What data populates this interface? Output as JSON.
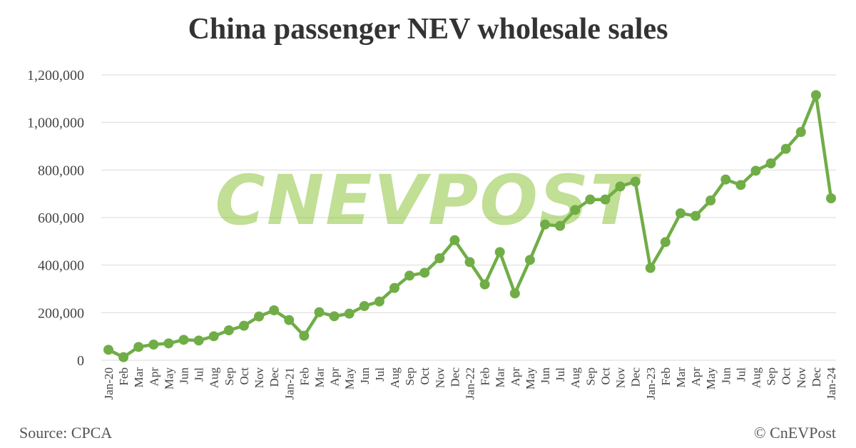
{
  "chart_data": {
    "type": "line",
    "title": "China passenger NEV wholesale sales",
    "source": "Source: CPCA",
    "copyright": "© CnEVPost",
    "watermark": "CNEVPOST",
    "ylim": [
      0,
      1200000
    ],
    "yticks": [
      "0",
      "200,000",
      "400,000",
      "600,000",
      "800,000",
      "1,000,000",
      "1,200,000"
    ],
    "ytick_values": [
      0,
      200000,
      400000,
      600000,
      800000,
      1000000,
      1200000
    ],
    "grid": true,
    "line_color": "#70ad47",
    "categories": [
      "Jan-20",
      "Feb",
      "Mar",
      "Apr",
      "May",
      "Jun",
      "Jul",
      "Aug",
      "Sep",
      "Oct",
      "Nov",
      "Dec",
      "Jan-21",
      "Feb",
      "Mar",
      "Apr",
      "May",
      "Jun",
      "Jul",
      "Aug",
      "Sep",
      "Oct",
      "Nov",
      "Dec",
      "Jan-22",
      "Feb",
      "Mar",
      "Apr",
      "May",
      "Jun",
      "Jul",
      "Aug",
      "Sep",
      "Oct",
      "Nov",
      "Dec",
      "Jan-23",
      "Feb",
      "Mar",
      "Apr",
      "May",
      "Jun",
      "Jul",
      "Aug",
      "Sep",
      "Oct",
      "Nov",
      "Dec",
      "Jan-24"
    ],
    "values": [
      44000,
      13000,
      56000,
      66000,
      71000,
      86000,
      83000,
      101000,
      126000,
      145000,
      184000,
      210000,
      169000,
      103000,
      202000,
      185000,
      196000,
      228000,
      247000,
      304000,
      356000,
      368000,
      429000,
      505000,
      413000,
      319000,
      455000,
      281000,
      422000,
      571000,
      565000,
      632000,
      676000,
      676000,
      731000,
      751000,
      388000,
      497000,
      618000,
      607000,
      672000,
      760000,
      737000,
      797000,
      828000,
      889000,
      960000,
      1115000,
      681000
    ]
  }
}
